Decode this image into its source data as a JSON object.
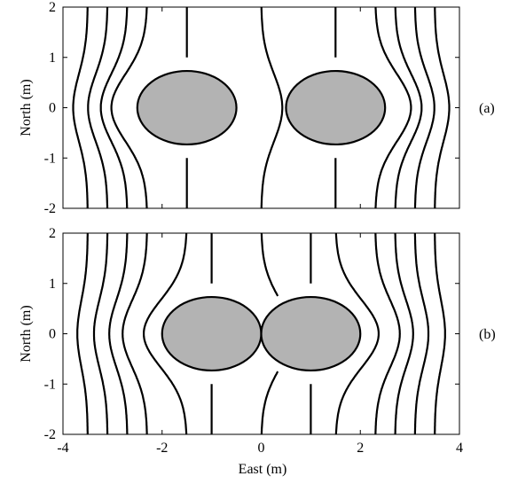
{
  "figure": {
    "x_axis_label": "East (m)",
    "y_axis_label": "North (m)",
    "colors": {
      "obstacle_fill": "#b3b3b3",
      "lines": "#000000",
      "background": "#ffffff"
    }
  },
  "panels": [
    {
      "id": "a",
      "tag": "(a)",
      "y_axis_label": "North (m)",
      "x_ticks": [
        "-4",
        "-2",
        "0",
        "2",
        "4"
      ],
      "y_ticks": [
        "2",
        "1",
        "0",
        "-1",
        "-2"
      ],
      "xlim": [
        -4,
        4
      ],
      "ylim": [
        -2,
        2
      ],
      "obstacles": [
        {
          "cx": -1.5,
          "cy": 0,
          "r": 1.0
        },
        {
          "cx": 1.5,
          "cy": 0,
          "r": 1.0
        }
      ],
      "streamlines_x0": [
        -3.5,
        -3.1,
        -2.7,
        -2.3,
        -1.5,
        0,
        1.5,
        2.3,
        2.7,
        3.1,
        3.5
      ],
      "show_x_tick_labels": false
    },
    {
      "id": "b",
      "tag": "(b)",
      "y_axis_label": "North (m)",
      "x_ticks": [
        "-4",
        "-2",
        "0",
        "2",
        "4"
      ],
      "y_ticks": [
        "2",
        "1",
        "0",
        "-1",
        "-2"
      ],
      "xlim": [
        -4,
        4
      ],
      "ylim": [
        -2,
        2
      ],
      "obstacles": [
        {
          "cx": -1.0,
          "cy": 0,
          "r": 1.0
        },
        {
          "cx": 1.0,
          "cy": 0,
          "r": 1.0
        }
      ],
      "streamlines_x0": [
        -3.5,
        -3.1,
        -2.7,
        -2.3,
        -1.5,
        -1.0,
        0,
        1.0,
        1.5,
        2.3,
        2.7,
        3.1,
        3.5
      ],
      "show_x_tick_labels": true
    }
  ]
}
